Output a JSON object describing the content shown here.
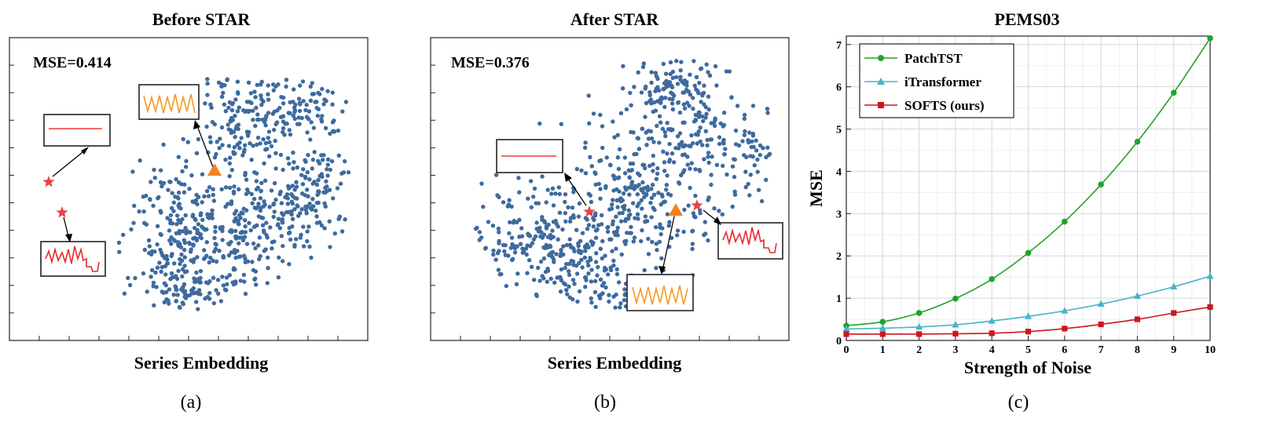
{
  "colors": {
    "points": "#3e6a9e",
    "triangle": "#f58220",
    "star": "#e8434a",
    "flat_line": "#f03a3a",
    "wave_orange": "#f39a1e",
    "wave_red": "#e8282e",
    "patchtst": "#22a32a",
    "itransformer": "#49b3c8",
    "softs": "#d0141e",
    "grid": "#d6d6d6"
  },
  "chart_data": [
    {
      "type": "scatter",
      "title": "Before STAR",
      "xlabel": "Series Embedding",
      "ylabel": "",
      "annotation": "MSE=0.414",
      "subfigure_label": "(a)",
      "markers": {
        "stars": 2,
        "triangles": 1
      },
      "inset_icons": [
        "flat-line-icon",
        "orange-periodic-wave-icon",
        "red-irregular-wave-icon"
      ]
    },
    {
      "type": "scatter",
      "title": "After STAR",
      "xlabel": "Series Embedding",
      "ylabel": "",
      "annotation": "MSE=0.376",
      "subfigure_label": "(b)",
      "markers": {
        "stars": 2,
        "triangles": 1
      },
      "inset_icons": [
        "flat-line-icon",
        "orange-periodic-wave-icon",
        "red-irregular-wave-icon"
      ]
    },
    {
      "type": "line",
      "title": "PEMS03",
      "xlabel": "Strength of Noise",
      "ylabel": "MSE",
      "subfigure_label": "(c)",
      "x": [
        0,
        1,
        2,
        3,
        4,
        5,
        6,
        7,
        8,
        9,
        10
      ],
      "xlim": [
        0,
        10
      ],
      "ylim": [
        0,
        7.2
      ],
      "xticks": [
        "0",
        "1",
        "2",
        "3",
        "4",
        "5",
        "6",
        "7",
        "8",
        "9",
        "10"
      ],
      "yticks": [
        "0",
        "1",
        "2",
        "3",
        "4",
        "5",
        "6",
        "7"
      ],
      "grid": true,
      "legend_position": "top-left",
      "series": [
        {
          "name": "PatchTST",
          "marker": "circle",
          "color": "#22a32a",
          "values": [
            0.35,
            0.44,
            0.65,
            0.99,
            1.45,
            2.07,
            2.81,
            3.69,
            4.7,
            5.86,
            7.15
          ]
        },
        {
          "name": "iTransformer",
          "marker": "triangle",
          "color": "#49b3c8",
          "values": [
            0.27,
            0.29,
            0.32,
            0.37,
            0.46,
            0.57,
            0.7,
            0.86,
            1.05,
            1.27,
            1.52
          ]
        },
        {
          "name": "SOFTS (ours)",
          "marker": "square",
          "color": "#d0141e",
          "values": [
            0.15,
            0.15,
            0.15,
            0.16,
            0.17,
            0.21,
            0.28,
            0.38,
            0.5,
            0.65,
            0.79
          ]
        }
      ]
    }
  ]
}
